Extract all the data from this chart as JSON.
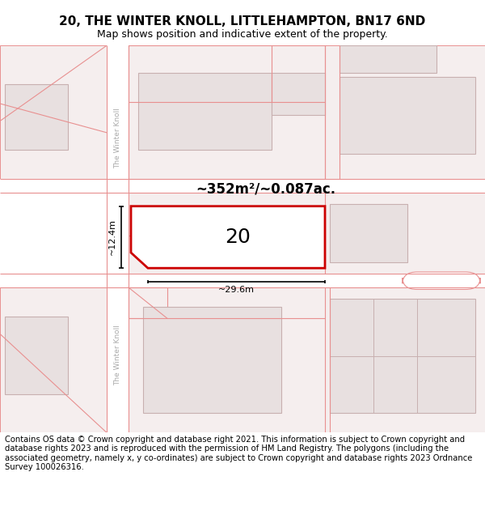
{
  "title": "20, THE WINTER KNOLL, LITTLEHAMPTON, BN17 6ND",
  "subtitle": "Map shows position and indicative extent of the property.",
  "footer": "Contains OS data © Crown copyright and database right 2021. This information is subject to Crown copyright and database rights 2023 and is reproduced with the permission of HM Land Registry. The polygons (including the associated geometry, namely x, y co-ordinates) are subject to Crown copyright and database rights 2023 Ordnance Survey 100026316.",
  "area_label": "~352m²/~0.087ac.",
  "width_label": "~29.6m",
  "height_label": "~12.4m",
  "property_number": "20",
  "map_bg": "#f5eeee",
  "road_color": "#ffffff",
  "building_fill": "#e8e0e0",
  "building_stroke": "#c8b0b0",
  "highlight_fill": "#ffffff",
  "highlight_stroke": "#cc0000",
  "road_line_color": "#e89090",
  "title_fontsize": 11,
  "subtitle_fontsize": 9,
  "footer_fontsize": 7.2
}
